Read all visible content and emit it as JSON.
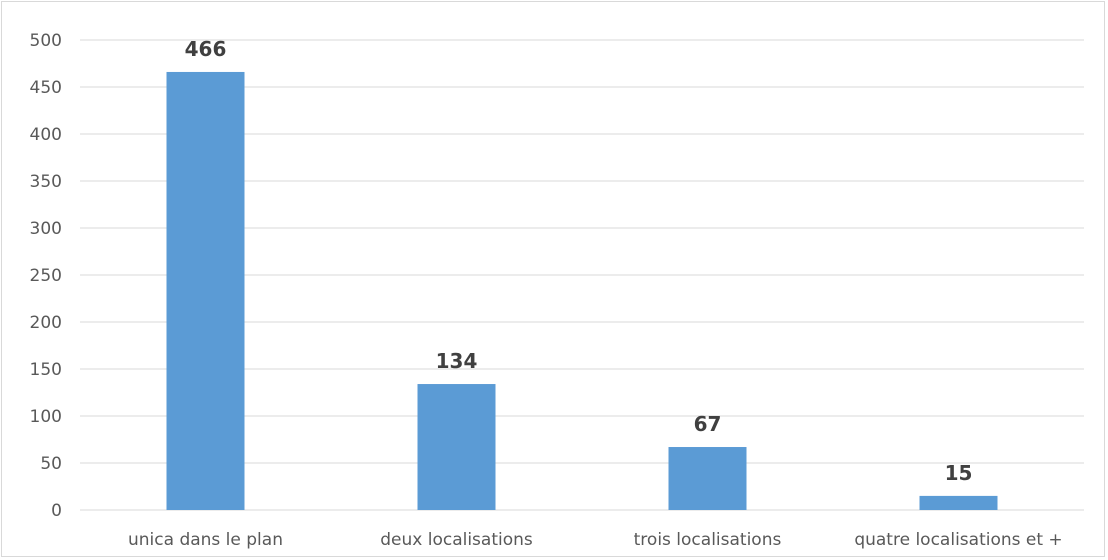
{
  "chart_data": {
    "type": "bar",
    "categories": [
      "unica dans le plan",
      "deux localisations",
      "trois localisations",
      "quatre localisations et +"
    ],
    "values": [
      466,
      134,
      67,
      15
    ],
    "data_labels": [
      "466",
      "134",
      "67",
      "15"
    ],
    "title": "",
    "xlabel": "",
    "ylabel": "",
    "ylim": [
      0,
      500
    ],
    "yticks": [
      0,
      50,
      100,
      150,
      200,
      250,
      300,
      350,
      400,
      450,
      500
    ],
    "ytick_labels": [
      "0",
      "50",
      "100",
      "150",
      "200",
      "250",
      "300",
      "350",
      "400",
      "450",
      "500"
    ],
    "grid": true,
    "legend": "none",
    "colors": {
      "bar": "#5b9bd5",
      "grid": "#d9d9d9",
      "tick_text": "#595959",
      "data_label_text": "#404040"
    }
  }
}
